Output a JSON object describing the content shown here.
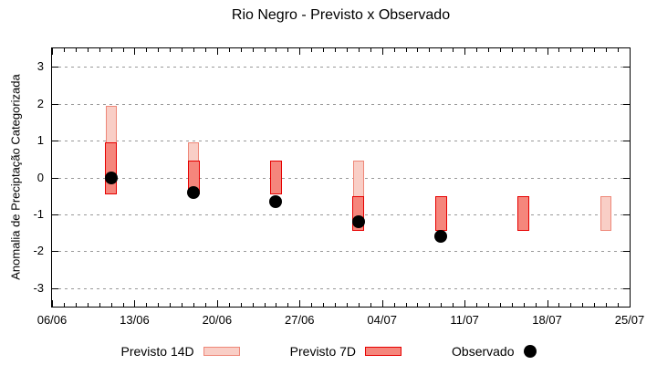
{
  "title": "Rio Negro - Previsto x Observado",
  "chart_data": {
    "type": "bar",
    "subtype": "forecast-range-candles-with-observed-dots",
    "title": "Rio Negro - Previsto x Observado",
    "xlabel": "",
    "ylabel": "Anomalia de Preciptação Categorizada",
    "ylim": [
      -3.5,
      3.5
    ],
    "yticks": [
      -3,
      -2,
      -1,
      0,
      1,
      2,
      3
    ],
    "grid": "horizontal dashed gray lines at each y tick",
    "legend_position": "bottom center",
    "x_axis_start": "06/06",
    "x_axis_end": "25/07",
    "x_total_days": 49,
    "xticks": [
      "06/06",
      "13/06",
      "20/06",
      "27/06",
      "04/07",
      "11/07",
      "18/07",
      "25/07"
    ],
    "x_minor_tick_every_days": 1,
    "series_labels": {
      "p14": "Previsto 14D",
      "p7": "Previsto 7D",
      "obs": "Observado"
    },
    "points": [
      {
        "date": "11/06",
        "day_offset": 5,
        "p14": [
          -0.45,
          1.95
        ],
        "p7": [
          -0.45,
          0.95
        ],
        "obs": 0.0
      },
      {
        "date": "18/06",
        "day_offset": 12,
        "p14": [
          -0.45,
          0.95
        ],
        "p7": [
          -0.45,
          0.45
        ],
        "obs": -0.4
      },
      {
        "date": "25/06",
        "day_offset": 19,
        "p14": null,
        "p7": [
          -0.45,
          0.45
        ],
        "obs": -0.65
      },
      {
        "date": "02/07",
        "day_offset": 26,
        "p14": [
          -1.45,
          0.45
        ],
        "p7": [
          -1.45,
          -0.5
        ],
        "obs": -1.2
      },
      {
        "date": "09/07",
        "day_offset": 33,
        "p14": null,
        "p7": [
          -1.45,
          -0.5
        ],
        "obs": -1.6
      },
      {
        "date": "16/07",
        "day_offset": 40,
        "p14": null,
        "p7": [
          -1.45,
          -0.5
        ],
        "obs": null
      },
      {
        "date": "23/07",
        "day_offset": 47,
        "p14": [
          -1.45,
          -0.5
        ],
        "p7": null,
        "obs": null
      }
    ],
    "colors": {
      "p14_fill": "#f9cec6",
      "p14_border": "#ee8778",
      "p7_fill": "#f5867c",
      "p7_border": "#e60000",
      "obs": "#000000",
      "grid": "#999999",
      "axis": "#000000"
    }
  }
}
